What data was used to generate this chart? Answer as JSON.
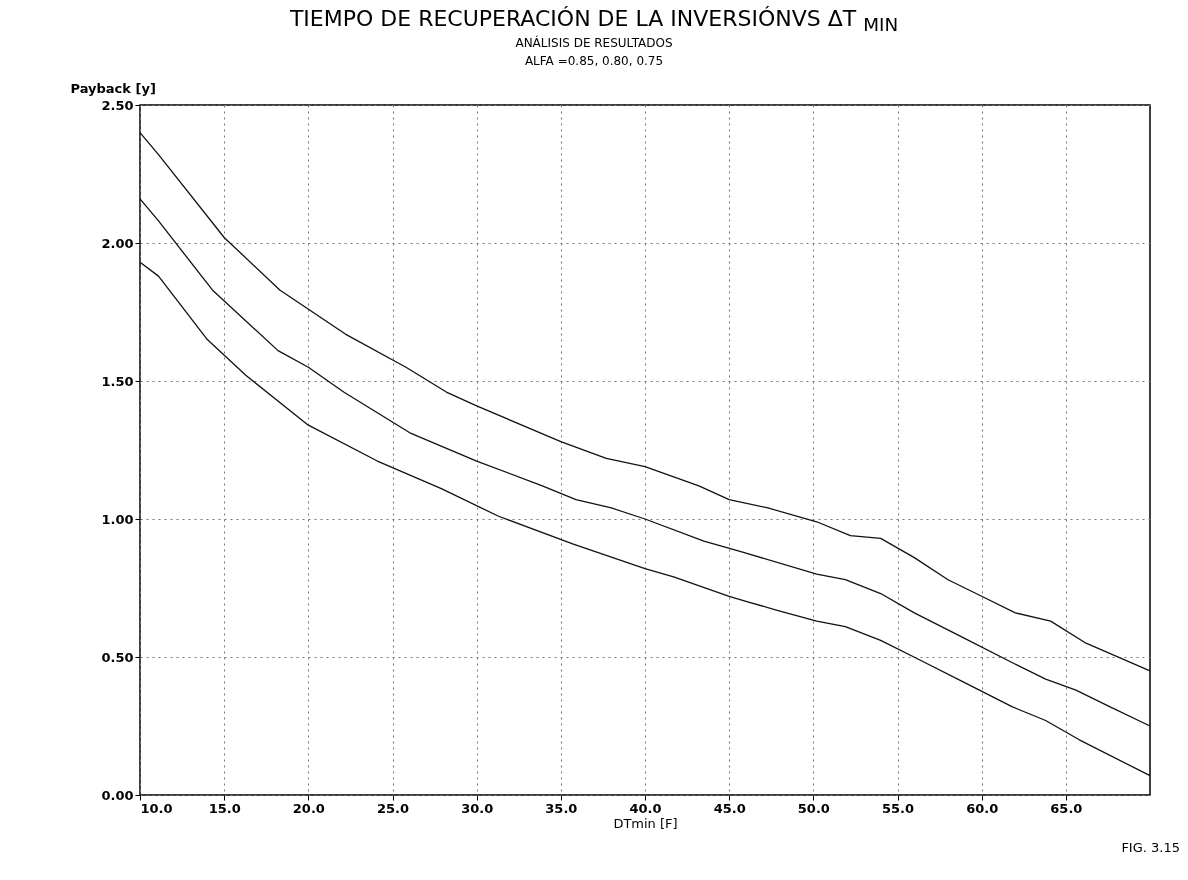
{
  "chart_data": {
    "type": "line",
    "title": "TIEMPO DE RECUPERACIÓN DE LA INVERSIÓNVS ΔT $_{MIN}$",
    "subtitle": "ANÁLISIS DE RESULTADOS",
    "annotations": [
      "ALFA =0.85, 0.80, 0.75",
      "FIG. 3.15"
    ],
    "xlabel": "DTmin [F]",
    "ylabel": "Payback [y]",
    "xlim": [
      10,
      70
    ],
    "ylim": [
      0,
      2.5
    ],
    "xticks": [
      {
        "value": 10,
        "label": "10.0"
      },
      {
        "value": 15,
        "label": "15.0"
      },
      {
        "value": 20,
        "label": "20.0"
      },
      {
        "value": 25,
        "label": "25.0"
      },
      {
        "value": 30,
        "label": "30.0"
      },
      {
        "value": 35,
        "label": "35.0"
      },
      {
        "value": 40,
        "label": "40.0"
      },
      {
        "value": 45,
        "label": "45.0"
      },
      {
        "value": 50,
        "label": "50.0"
      },
      {
        "value": 55,
        "label": "55.0"
      },
      {
        "value": 60,
        "label": "60.0"
      },
      {
        "value": 65,
        "label": "65.0"
      }
    ],
    "yticks": [
      {
        "value": 0,
        "label": "0.00"
      },
      {
        "value": 0.5,
        "label": "0.50"
      },
      {
        "value": 1,
        "label": "1.00"
      },
      {
        "value": 1.5,
        "label": "1.50"
      },
      {
        "value": 2,
        "label": "2.00"
      },
      {
        "value": 2.5,
        "label": "2.50"
      }
    ],
    "grid": true,
    "line_style": "solid",
    "series": [
      {
        "color": "#111111",
        "x": [
          10,
          11.1,
          15,
          18.3,
          22.2,
          25.8,
          28.2,
          30,
          35,
          37.7,
          40,
          43.2,
          45,
          47.3,
          50.2,
          52.2,
          54,
          56,
          58,
          60,
          62,
          64.1,
          66.2,
          70
        ],
        "values": [
          2.4,
          2.32,
          2.02,
          1.83,
          1.67,
          1.55,
          1.46,
          1.41,
          1.28,
          1.22,
          1.19,
          1.12,
          1.07,
          1.04,
          0.99,
          0.94,
          0.93,
          0.86,
          0.78,
          0.72,
          0.66,
          0.63,
          0.55,
          0.45
        ]
      },
      {
        "color": "#111111",
        "x": [
          10,
          11.1,
          14.3,
          18.2,
          20,
          22.1,
          26.1,
          30,
          33.9,
          35.9,
          38,
          40,
          43.5,
          45.8,
          50.2,
          51.9,
          54,
          56,
          58.9,
          61.8,
          63.8,
          65.6,
          67.6,
          70
        ],
        "values": [
          2.16,
          2.08,
          1.83,
          1.61,
          1.55,
          1.46,
          1.31,
          1.21,
          1.12,
          1.07,
          1.04,
          1.0,
          0.92,
          0.88,
          0.8,
          0.78,
          0.73,
          0.66,
          0.57,
          0.48,
          0.42,
          0.38,
          0.32,
          0.25
        ]
      },
      {
        "color": "#111111",
        "x": [
          10,
          11.1,
          14,
          16.3,
          20,
          24.1,
          27.9,
          31.3,
          35.7,
          40,
          41.7,
          45,
          46.1,
          47.8,
          50.2,
          51.9,
          54,
          56.3,
          58.9,
          61.8,
          63.8,
          65.8,
          70
        ],
        "values": [
          1.93,
          1.88,
          1.65,
          1.52,
          1.34,
          1.21,
          1.11,
          1.01,
          0.91,
          0.82,
          0.79,
          0.72,
          0.7,
          0.67,
          0.63,
          0.61,
          0.56,
          0.49,
          0.41,
          0.32,
          0.27,
          0.2,
          0.07
        ]
      }
    ]
  }
}
